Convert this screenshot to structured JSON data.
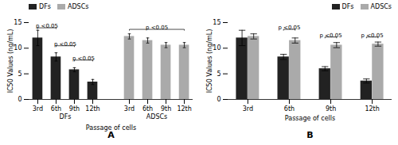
{
  "chart_data": [
    {
      "type": "bar",
      "title": "A",
      "categories": [
        "3rd",
        "6th",
        "9th",
        "12th",
        null,
        "3rd",
        "6th",
        "9th",
        "12th"
      ],
      "series": [
        {
          "name": "DFs",
          "color": "#222222",
          "values": [
            12.0,
            8.3,
            5.8,
            3.4,
            null,
            null,
            null,
            null,
            null
          ],
          "errors": [
            1.5,
            0.8,
            0.4,
            0.5,
            null,
            null,
            null,
            null,
            null
          ]
        },
        {
          "name": "ADSCs",
          "color": "#aaaaaa",
          "values": [
            null,
            null,
            null,
            null,
            null,
            12.3,
            11.5,
            10.6,
            10.6
          ],
          "errors": [
            null,
            null,
            null,
            null,
            null,
            0.5,
            0.5,
            0.5,
            0.5
          ]
        }
      ],
      "xlabel": "Passage of cells",
      "ylabel": "IC50 Values (ng/mL)",
      "ylim": [
        0,
        15
      ],
      "yticks": [
        0,
        5,
        10,
        15
      ],
      "grid": false,
      "legend": "upper left",
      "group_labels": [
        {
          "text": "DFs",
          "from": 0,
          "to": 3
        },
        {
          "text": "ADSCs",
          "from": 5,
          "to": 8
        }
      ],
      "brackets": [
        {
          "from": 0,
          "to": 1,
          "y": 13.8,
          "text": "p <0.05"
        },
        {
          "from": 1,
          "to": 2,
          "y": 10.3,
          "text": "p <0.05"
        },
        {
          "from": 2,
          "to": 3,
          "y": 7.5,
          "text": "p <0.05"
        },
        {
          "from": 5,
          "to": 8,
          "y": 13.5,
          "text": "p <0.05"
        }
      ]
    },
    {
      "type": "bar",
      "title": "B",
      "categories": [
        "3rd",
        "6th",
        "9th",
        "12th"
      ],
      "series": [
        {
          "name": "DFs",
          "color": "#222222",
          "values": [
            12.0,
            8.3,
            6.0,
            3.6
          ],
          "errors": [
            1.5,
            0.5,
            0.4,
            0.4
          ]
        },
        {
          "name": "ADSCs",
          "color": "#aaaaaa",
          "values": [
            12.3,
            11.5,
            10.6,
            10.8
          ],
          "errors": [
            0.5,
            0.5,
            0.5,
            0.4
          ]
        }
      ],
      "xlabel": "Passage of cells",
      "ylabel": "IC50 Values (ng/mL)",
      "ylim": [
        0,
        15
      ],
      "yticks": [
        0,
        5,
        10,
        15
      ],
      "grid": false,
      "legend": "upper right",
      "brackets": [
        {
          "category": 1,
          "y": 13.5,
          "text": "p <0.05"
        },
        {
          "category": 2,
          "y": 12.0,
          "text": "p <0.05"
        },
        {
          "category": 3,
          "y": 12.0,
          "text": "p <0.05"
        }
      ]
    }
  ]
}
